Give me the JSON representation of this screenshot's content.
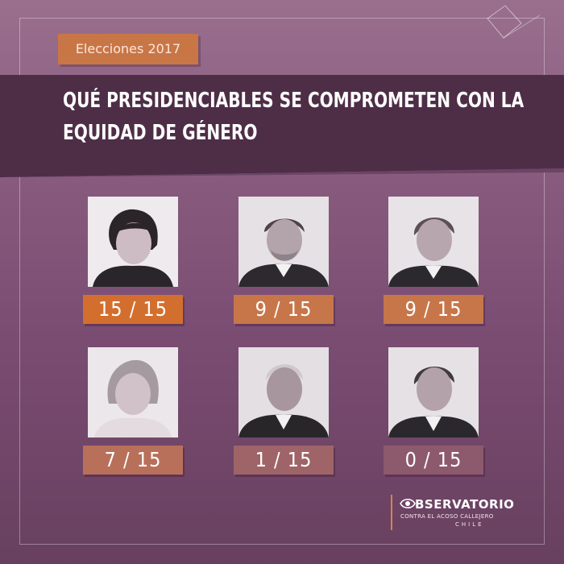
{
  "header": {
    "tag": "Elecciones 2017",
    "title_line1": "QUÉ PRESIDENCIABLES SE COMPROMETEN CON LA",
    "title_line2": "EQUIDAD DE GÉNERO"
  },
  "candidates": [
    {
      "score": "15 / 15",
      "color": "#d36f2e"
    },
    {
      "score": "9 / 15",
      "color": "#c7764a"
    },
    {
      "score": "9 / 15",
      "color": "#c7764a"
    },
    {
      "score": "7 / 15",
      "color": "#b8705a"
    },
    {
      "score": "1 / 15",
      "color": "#9e6467"
    },
    {
      "score": "0 / 15",
      "color": "#8c5a6c"
    }
  ],
  "logo": {
    "name": "OBSERVATORIO",
    "subtitle": "CONTRA EL ACOSO CALLEJERO",
    "country": "CHILE"
  },
  "colors": {
    "accent": "#c97647",
    "band": "#4e2e47",
    "background": "#86597c"
  }
}
